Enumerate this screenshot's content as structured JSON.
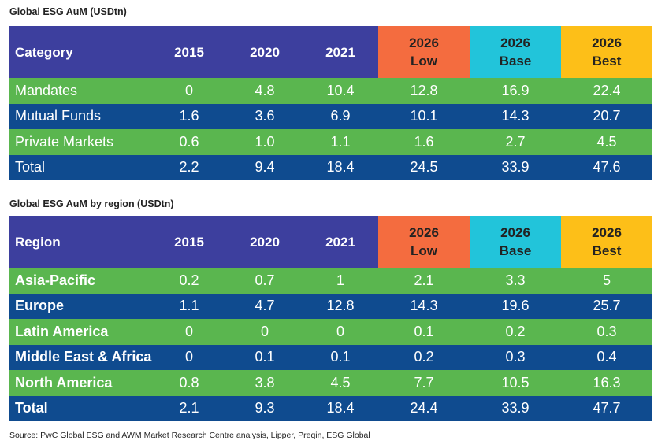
{
  "chart_data": [
    {
      "type": "table",
      "title": "Global ESG AuM (USDtn)",
      "columns": [
        "Category",
        "2015",
        "2020",
        "2021",
        "2026 Low",
        "2026 Base",
        "2026 Best"
      ],
      "header": {
        "label": "Category",
        "y2015": "2015",
        "y2020": "2020",
        "y2021": "2021",
        "low_a": "2026",
        "low_b": "Low",
        "base_a": "2026",
        "base_b": "Base",
        "best_a": "2026",
        "best_b": "Best"
      },
      "rows": [
        {
          "label": "Mandates",
          "values": [
            "0",
            "4.8",
            "10.4",
            "12.8",
            "16.9",
            "22.4"
          ]
        },
        {
          "label": "Mutual Funds",
          "values": [
            "1.6",
            "3.6",
            "6.9",
            "10.1",
            "14.3",
            "20.7"
          ]
        },
        {
          "label": "Private Markets",
          "values": [
            "0.6",
            "1.0",
            "1.1",
            "1.6",
            "2.7",
            "4.5"
          ]
        },
        {
          "label": "Total",
          "values": [
            "2.2",
            "9.4",
            "18.4",
            "24.5",
            "33.9",
            "47.6"
          ]
        }
      ]
    },
    {
      "type": "table",
      "title": "Global ESG AuM by region (USDtn)",
      "columns": [
        "Region",
        "2015",
        "2020",
        "2021",
        "2026 Low",
        "2026 Base",
        "2026 Best"
      ],
      "header": {
        "label": "Region",
        "y2015": "2015",
        "y2020": "2020",
        "y2021": "2021",
        "low_a": "2026",
        "low_b": "Low",
        "base_a": "2026",
        "base_b": "Base",
        "best_a": "2026",
        "best_b": "Best"
      },
      "rows": [
        {
          "label": "Asia-Pacific",
          "values": [
            "0.2",
            "0.7",
            "1",
            "2.1",
            "3.3",
            "5"
          ]
        },
        {
          "label": "Europe",
          "values": [
            "1.1",
            "4.7",
            "12.8",
            "14.3",
            "19.6",
            "25.7"
          ]
        },
        {
          "label": "Latin America",
          "values": [
            "0",
            "0",
            "0",
            "0.1",
            "0.2",
            "0.3"
          ]
        },
        {
          "label": "Middle East & Africa",
          "values": [
            "0",
            "0.1",
            "0.1",
            "0.2",
            "0.3",
            "0.4"
          ]
        },
        {
          "label": "North America",
          "values": [
            "0.8",
            "3.8",
            "4.5",
            "7.7",
            "10.5",
            "16.3"
          ]
        },
        {
          "label": "Total",
          "values": [
            "2.1",
            "9.3",
            "18.4",
            "24.4",
            "33.9",
            "47.7"
          ]
        }
      ]
    }
  ],
  "colors": {
    "header": "#3d3f9e",
    "low": "#f46c3f",
    "base": "#22c4da",
    "best": "#fdbf18",
    "row_green": "#5ab64f",
    "row_blue": "#0f4b8f"
  },
  "source": "Source: PwC Global ESG and AWM Market Research Centre analysis, Lipper, Preqin, ESG Global"
}
